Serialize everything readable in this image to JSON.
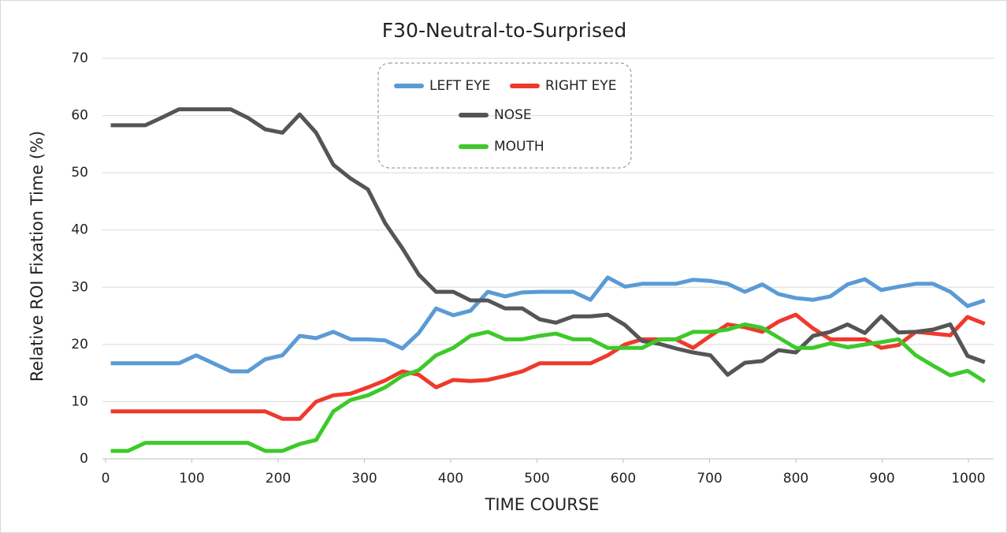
{
  "chart_data": {
    "type": "line",
    "title": "F30-Neutral-to-Surprised",
    "x_label": "TIME  COURSE",
    "y_label": "Relative  ROI  Fixation  Time  (%)",
    "x": [
      6,
      26,
      46,
      66,
      85,
      105,
      125,
      145,
      165,
      185,
      205,
      225,
      244,
      264,
      284,
      304,
      324,
      344,
      363,
      383,
      403,
      423,
      443,
      463,
      483,
      503,
      522,
      542,
      562,
      582,
      602,
      622,
      642,
      661,
      681,
      701,
      721,
      741,
      761,
      780,
      800,
      820,
      840,
      860,
      880,
      899,
      919,
      939,
      959,
      979,
      999,
      1019
    ],
    "series": [
      {
        "name": "LEFT EYE",
        "color": "#5b9bd5",
        "values": [
          16.7,
          16.7,
          16.7,
          16.7,
          16.7,
          18.1,
          16.7,
          15.3,
          15.3,
          17.4,
          18.1,
          21.5,
          21.1,
          22.2,
          20.9,
          20.9,
          20.7,
          19.3,
          22,
          26.3,
          25.1,
          25.9,
          29.2,
          28.4,
          29.1,
          29.2,
          29.2,
          29.2,
          27.8,
          31.7,
          30.1,
          30.6,
          30.6,
          30.6,
          31.3,
          31.1,
          30.6,
          29.2,
          30.5,
          28.8,
          28.1,
          27.8,
          28.4,
          30.5,
          31.4,
          29.5,
          30.1,
          30.6,
          30.6,
          29.2,
          26.7,
          27.7
        ]
      },
      {
        "name": "RIGHT EYE",
        "color": "#ee3a2d",
        "values": [
          8.3,
          8.3,
          8.3,
          8.3,
          8.3,
          8.3,
          8.3,
          8.3,
          8.3,
          8.3,
          7,
          7,
          10,
          11.1,
          11.4,
          12.5,
          13.7,
          15.3,
          14.7,
          12.5,
          13.8,
          13.6,
          13.8,
          14.5,
          15.3,
          16.7,
          16.7,
          16.7,
          16.7,
          18.1,
          20,
          20.9,
          20.9,
          20.9,
          19.4,
          21.5,
          23.5,
          23,
          22.2,
          24,
          25.2,
          22.8,
          20.9,
          20.9,
          20.9,
          19.4,
          19.9,
          22.2,
          21.9,
          21.6,
          24.8,
          23.6
        ]
      },
      {
        "name": "NOSE",
        "color": "#555555",
        "values": [
          58.3,
          58.3,
          58.3,
          59.7,
          61.1,
          61.1,
          61.1,
          61.1,
          59.6,
          57.6,
          57,
          60.2,
          57,
          51.4,
          49,
          47.1,
          41.2,
          36.8,
          32.2,
          29.2,
          29.2,
          27.7,
          27.7,
          26.3,
          26.3,
          24.4,
          23.8,
          24.9,
          24.9,
          25.2,
          23.4,
          20.6,
          20.1,
          19.3,
          18.6,
          18.1,
          14.7,
          16.8,
          17.1,
          19,
          18.6,
          21.5,
          22.2,
          23.5,
          22,
          24.9,
          22.1,
          22.2,
          22.6,
          23.5,
          18,
          16.9
        ]
      },
      {
        "name": "MOUTH",
        "color": "#3ec92a",
        "values": [
          1.4,
          1.4,
          2.8,
          2.8,
          2.8,
          2.8,
          2.8,
          2.8,
          2.8,
          1.4,
          1.4,
          2.6,
          3.3,
          8.3,
          10.3,
          11.1,
          12.5,
          14.5,
          15.5,
          18.1,
          19.4,
          21.5,
          22.2,
          20.9,
          20.9,
          21.5,
          21.9,
          20.9,
          20.9,
          19.4,
          19.4,
          19.4,
          20.9,
          20.9,
          22.2,
          22.2,
          22.6,
          23.5,
          22.9,
          21.2,
          19.4,
          19.4,
          20.2,
          19.5,
          20,
          20.4,
          20.9,
          18.1,
          16.3,
          14.6,
          15.4,
          13.5
        ]
      }
    ],
    "xlim": [
      0,
      1026
    ],
    "xticks": [
      0,
      100,
      200,
      300,
      400,
      500,
      600,
      700,
      800,
      900,
      1000
    ],
    "ylim": [
      0,
      70
    ],
    "yticks": [
      0,
      10,
      20,
      30,
      40,
      50,
      60,
      70
    ],
    "grid": true,
    "legend": "top"
  }
}
